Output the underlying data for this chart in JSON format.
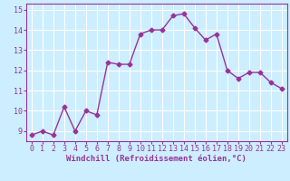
{
  "x": [
    0,
    1,
    2,
    3,
    4,
    5,
    6,
    7,
    8,
    9,
    10,
    11,
    12,
    13,
    14,
    15,
    16,
    17,
    18,
    19,
    20,
    21,
    22,
    23
  ],
  "y": [
    8.8,
    9.0,
    8.8,
    10.2,
    9.0,
    10.0,
    9.8,
    12.4,
    12.3,
    12.3,
    13.8,
    14.0,
    14.0,
    14.7,
    14.8,
    14.1,
    13.5,
    13.8,
    12.0,
    11.6,
    11.9,
    11.9,
    11.4,
    11.1
  ],
  "line_color": "#993399",
  "marker": "D",
  "markersize": 2.5,
  "linewidth": 1.0,
  "xlabel": "Windchill (Refroidissement éolien,°C)",
  "xlabel_fontsize": 6.5,
  "ylim": [
    8.5,
    15.3
  ],
  "xlim": [
    -0.5,
    23.5
  ],
  "yticks": [
    9,
    10,
    11,
    12,
    13,
    14,
    15
  ],
  "xticks": [
    0,
    1,
    2,
    3,
    4,
    5,
    6,
    7,
    8,
    9,
    10,
    11,
    12,
    13,
    14,
    15,
    16,
    17,
    18,
    19,
    20,
    21,
    22,
    23
  ],
  "background_color": "#cceeff",
  "grid_color": "#ffffff",
  "tick_fontsize": 6.0,
  "spine_color": "#993399"
}
